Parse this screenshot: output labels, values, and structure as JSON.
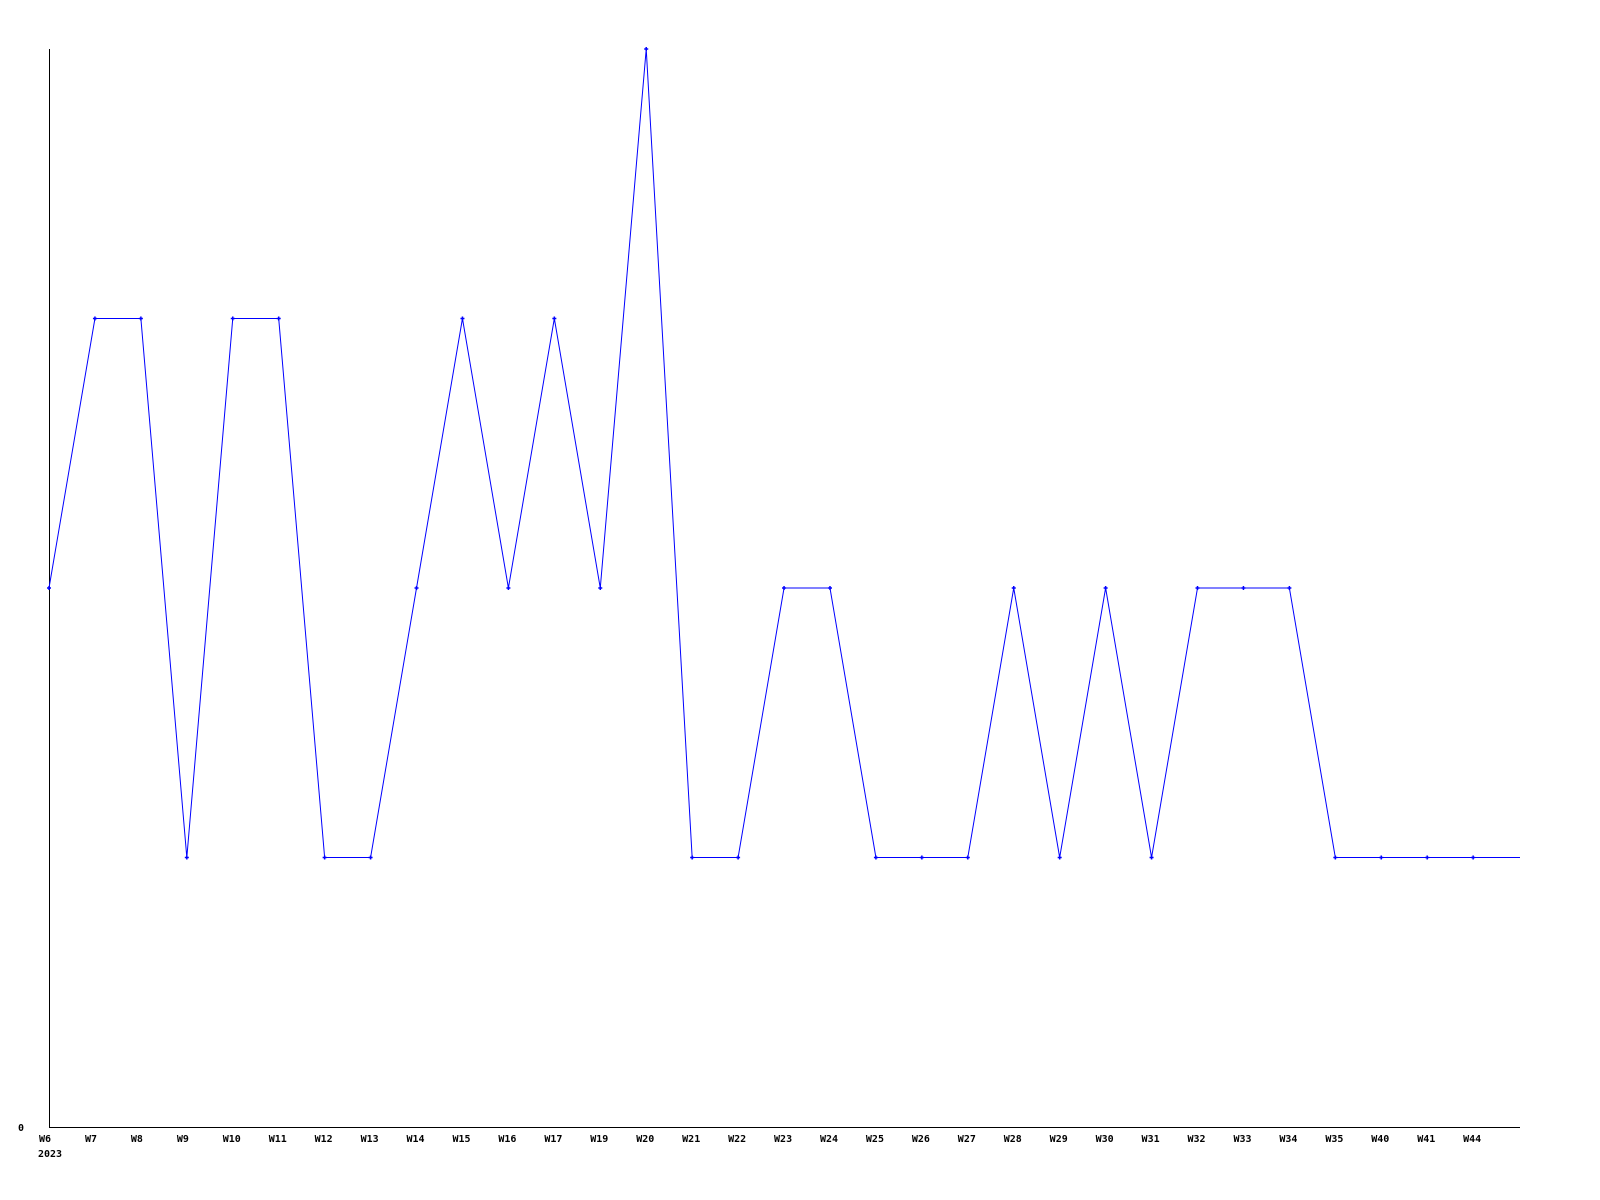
{
  "chart_data": {
    "type": "line",
    "title": "",
    "xlabel": "",
    "ylabel": "",
    "categories": [
      "W6",
      "W7",
      "W8",
      "W9",
      "W10",
      "W11",
      "W12",
      "W13",
      "W14",
      "W15",
      "W16",
      "W17",
      "W19",
      "W20",
      "W21",
      "W22",
      "W23",
      "W24",
      "W25",
      "W26",
      "W27",
      "W28",
      "W29",
      "W30",
      "W31",
      "W32",
      "W33",
      "W34",
      "W35",
      "W40",
      "W41",
      "W44"
    ],
    "year_label": "2023",
    "y_tick_labels": [
      "0"
    ],
    "ylim": [
      0,
      4
    ],
    "grid": false,
    "series": [
      {
        "values": [
          2,
          3,
          3,
          1,
          3,
          3,
          1,
          1,
          2,
          3,
          2,
          3,
          2,
          4,
          1,
          1,
          2,
          2,
          1,
          1,
          1,
          2,
          1,
          2,
          1,
          2,
          2,
          2,
          1,
          1,
          1,
          1
        ],
        "color": "#0000ff"
      }
    ]
  }
}
